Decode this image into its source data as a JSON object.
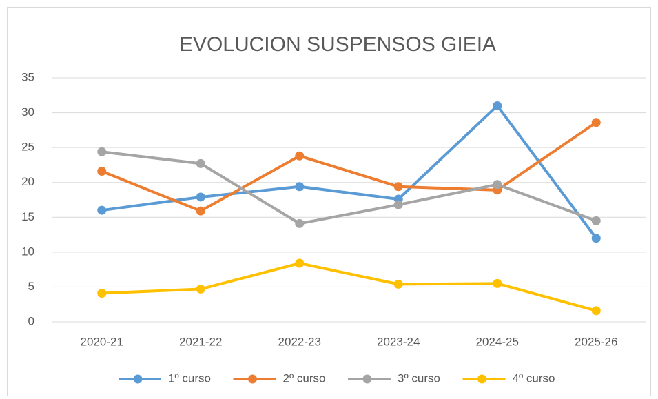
{
  "chart_data": {
    "type": "line",
    "title": "EVOLUCION SUSPENSOS GIEIA",
    "categories": [
      "2020-21",
      "2021-22",
      "2022-23",
      "2023-24",
      "2024-25",
      "2025-26"
    ],
    "series": [
      {
        "name": "1º curso",
        "color": "#5b9bd5",
        "values": [
          16.0,
          17.9,
          19.4,
          17.6,
          31.0,
          12.0
        ]
      },
      {
        "name": "2º curso",
        "color": "#ed7d31",
        "values": [
          21.6,
          15.9,
          23.8,
          19.4,
          18.9,
          28.6
        ]
      },
      {
        "name": "3º curso",
        "color": "#a5a5a5",
        "values": [
          24.4,
          22.7,
          14.1,
          16.8,
          19.7,
          14.5
        ]
      },
      {
        "name": "4º curso",
        "color": "#ffc000",
        "values": [
          4.1,
          4.7,
          8.4,
          5.4,
          5.5,
          1.6
        ]
      }
    ],
    "ylim": [
      0,
      35
    ],
    "yticks": [
      0,
      5,
      10,
      15,
      20,
      25,
      30,
      35
    ],
    "grid": true,
    "legend": "bottom"
  }
}
